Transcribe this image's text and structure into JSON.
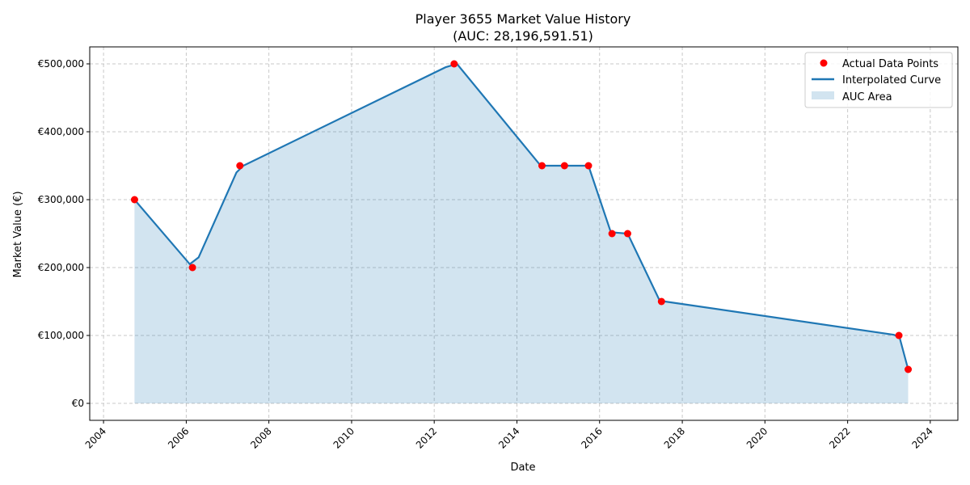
{
  "chart_data": {
    "type": "line",
    "title": "Player 3655 Market Value History",
    "subtitle": "(AUC: 28,196,591.51)",
    "xlabel": "Date",
    "ylabel": "Market Value (€)",
    "x_ticks": [
      "2004",
      "2006",
      "2008",
      "2010",
      "2012",
      "2014",
      "2016",
      "2018",
      "2020",
      "2022",
      "2024"
    ],
    "y_ticks": [
      "€0",
      "€100,000",
      "€200,000",
      "€300,000",
      "€400,000",
      "€500,000"
    ],
    "xlim": [
      "2003-09-01",
      "2024-09-01"
    ],
    "ylim": [
      -25000,
      525000
    ],
    "grid": true,
    "legend_position": "top-right",
    "series": [
      {
        "name": "Actual Data Points",
        "kind": "scatter",
        "color": "#ff0000",
        "points": [
          {
            "x": "2004-10-01",
            "y": 300000
          },
          {
            "x": "2006-02-25",
            "y": 200000
          },
          {
            "x": "2007-04-20",
            "y": 350000
          },
          {
            "x": "2012-06-25",
            "y": 500000
          },
          {
            "x": "2014-08-10",
            "y": 350000
          },
          {
            "x": "2015-02-25",
            "y": 350000
          },
          {
            "x": "2015-09-25",
            "y": 350000
          },
          {
            "x": "2016-04-20",
            "y": 250000
          },
          {
            "x": "2016-09-05",
            "y": 250000
          },
          {
            "x": "2017-07-01",
            "y": 150000
          },
          {
            "x": "2023-03-30",
            "y": 100000
          },
          {
            "x": "2023-06-20",
            "y": 50000
          }
        ]
      },
      {
        "name": "Interpolated Curve",
        "kind": "line",
        "color": "#1f77b4",
        "points": [
          {
            "x": "2004-10-01",
            "y": 300000
          },
          {
            "x": "2006-02-01",
            "y": 205000
          },
          {
            "x": "2006-04-20",
            "y": 215000
          },
          {
            "x": "2007-03-20",
            "y": 340000
          },
          {
            "x": "2007-05-20",
            "y": 350000
          },
          {
            "x": "2012-04-10",
            "y": 495000
          },
          {
            "x": "2012-07-20",
            "y": 500000
          },
          {
            "x": "2014-07-20",
            "y": 352000
          },
          {
            "x": "2014-09-01",
            "y": 350000
          },
          {
            "x": "2015-09-25",
            "y": 350000
          },
          {
            "x": "2016-04-10",
            "y": 252000
          },
          {
            "x": "2016-09-05",
            "y": 250000
          },
          {
            "x": "2017-06-10",
            "y": 153000
          },
          {
            "x": "2017-08-01",
            "y": 150000
          },
          {
            "x": "2023-02-15",
            "y": 101000
          },
          {
            "x": "2023-04-05",
            "y": 97000
          },
          {
            "x": "2023-06-20",
            "y": 50000
          }
        ]
      },
      {
        "name": "AUC Area",
        "kind": "area",
        "color": "#1f77b4",
        "opacity": 0.2
      }
    ]
  }
}
